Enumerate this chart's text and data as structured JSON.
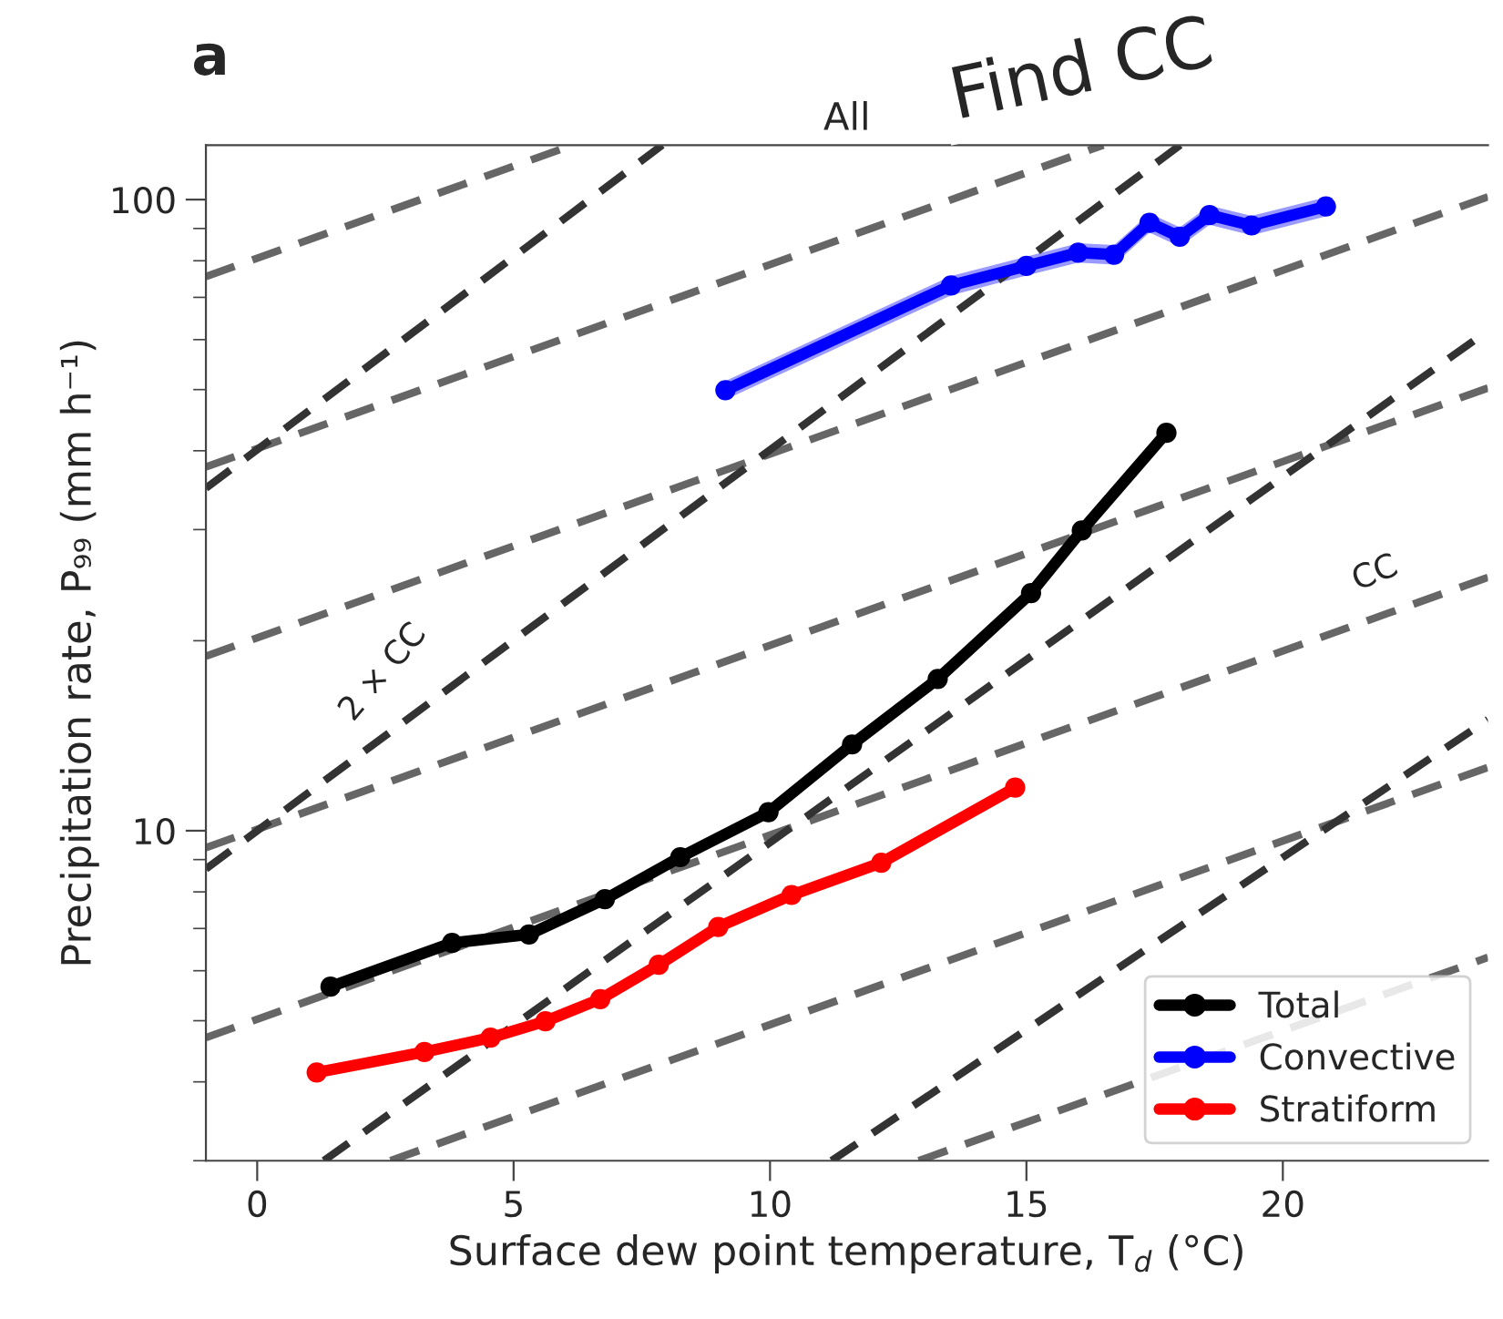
{
  "chart_data": {
    "type": "line",
    "title": "All",
    "xlabel": "Surface dew point temperature, T$_{d}$ (°C)",
    "ylabel": "Precipitation rate, P₉₉ (mm h⁻¹)",
    "xlim": [
      -1,
      24
    ],
    "xticks": [
      0,
      5,
      10,
      15,
      20
    ],
    "ylim": [
      3,
      122
    ],
    "yticks": [
      10,
      100
    ],
    "log": true,
    "grid": false,
    "legend": "bottom right",
    "annotations": [
      "a",
      "Find CC",
      "CC",
      "2 × CC"
    ],
    "series": [
      {
        "type": "line",
        "color": "#666666",
        "line_style": "dashed",
        "marker": "none",
        "x": [
          -1,
          6.15
        ],
        "values": [
          75.5,
          122
        ]
      },
      {
        "type": "line",
        "color": "#666666",
        "line_style": "dashed",
        "marker": "none",
        "x": [
          -1,
          16.5
        ],
        "values": [
          37.7,
          122
        ]
      },
      {
        "type": "line",
        "color": "#666666",
        "line_style": "dashed",
        "marker": "none",
        "x": [
          -1,
          24
        ],
        "values": [
          18.9,
          101
        ]
      },
      {
        "type": "line",
        "color": "#666666",
        "line_style": "dashed",
        "marker": "none",
        "x": [
          -1,
          24
        ],
        "values": [
          9.4,
          50.3
        ]
      },
      {
        "type": "line",
        "color": "#666666",
        "line_style": "dashed",
        "marker": "none",
        "x": [
          -1,
          24
        ],
        "values": [
          4.7,
          25.2
        ]
      },
      {
        "type": "line",
        "color": "#666666",
        "line_style": "dashed",
        "marker": "none",
        "x": [
          2.6,
          24
        ],
        "values": [
          3,
          12.6
        ]
      },
      {
        "type": "line",
        "color": "#666666",
        "line_style": "dashed",
        "marker": "none",
        "x": [
          12.9,
          24
        ],
        "values": [
          3,
          6.3
        ]
      },
      {
        "type": "line",
        "color": "#333333",
        "line_style": "dashed",
        "marker": "none",
        "x": [
          -1,
          7.9
        ],
        "values": [
          34.9,
          122
        ]
      },
      {
        "type": "line",
        "color": "#333333",
        "line_style": "dashed",
        "marker": "none",
        "x": [
          -1,
          18.0
        ],
        "values": [
          8.7,
          122
        ]
      },
      {
        "type": "line",
        "color": "#333333",
        "line_style": "dashed",
        "marker": "none",
        "x": [
          1.3,
          24
        ],
        "values": [
          3,
          62
        ]
      },
      {
        "type": "line",
        "color": "#333333",
        "line_style": "dashed",
        "marker": "none",
        "x": [
          11.2,
          24
        ],
        "values": [
          3,
          15
        ]
      },
      {
        "name": "Total",
        "color": "#000000",
        "line_style": "solid",
        "marker": "circle",
        "x": [
          1.43,
          3.8,
          5.3,
          6.78,
          8.25,
          9.97,
          11.6,
          13.27,
          15.09,
          16.08,
          17.73
        ],
        "values": [
          5.66,
          6.64,
          6.85,
          7.79,
          9.08,
          10.7,
          13.7,
          17.4,
          23.8,
          29.9,
          42.7
        ]
      },
      {
        "name": "Convective",
        "color": "#0000ff",
        "line_style": "solid",
        "marker": "circle",
        "x": [
          9.13,
          13.53,
          15.0,
          16.01,
          16.71,
          17.4,
          17.99,
          18.57,
          19.39,
          20.84
        ],
        "values": [
          49.9,
          73.1,
          78.5,
          82.4,
          81.8,
          91.9,
          87.3,
          94.5,
          91.0,
          97.5
        ],
        "lower": [
          48.2,
          70.5,
          75.8,
          79.5,
          78.9,
          88.7,
          84.2,
          91.2,
          87.8,
          94.1
        ],
        "upper": [
          51.6,
          75.7,
          81.2,
          85.3,
          84.7,
          95.1,
          90.4,
          97.8,
          94.2,
          100.9
        ]
      },
      {
        "name": "Stratiform",
        "color": "#ff0000",
        "line_style": "solid",
        "marker": "circle",
        "x": [
          1.16,
          3.26,
          4.55,
          5.62,
          6.69,
          7.83,
          8.99,
          10.42,
          12.17,
          14.78
        ],
        "values": [
          4.14,
          4.46,
          4.7,
          4.99,
          5.41,
          6.13,
          7.04,
          7.91,
          8.9,
          11.7
        ]
      }
    ]
  }
}
